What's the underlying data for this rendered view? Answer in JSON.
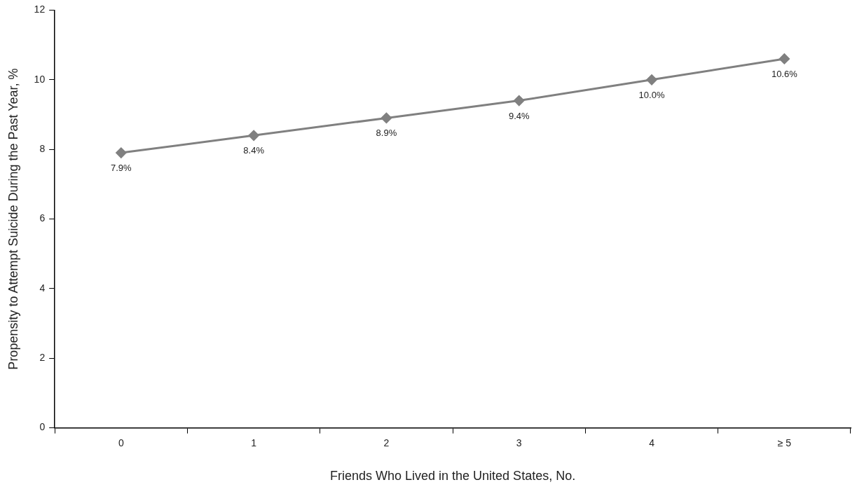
{
  "chart_data": {
    "type": "line",
    "xlabel": "Friends Who Lived in the United States, No.",
    "ylabel": "Propensity to Attempt Suicide During the Past Year, %",
    "categories": [
      "0",
      "1",
      "2",
      "3",
      "4",
      "≥ 5"
    ],
    "series": [
      {
        "color": "#808080",
        "values": [
          7.9,
          8.4,
          8.9,
          9.4,
          10.0,
          10.6
        ],
        "value_labels": [
          "7.9%",
          "8.4%",
          "8.9%",
          "9.4%",
          "10.0%",
          "10.6%"
        ]
      }
    ],
    "ylim": [
      0,
      12
    ],
    "yticks": [
      0,
      2,
      4,
      6,
      8,
      10,
      12
    ],
    "grid": false,
    "legend": false,
    "marker": "diamond",
    "line_style": "solid"
  }
}
